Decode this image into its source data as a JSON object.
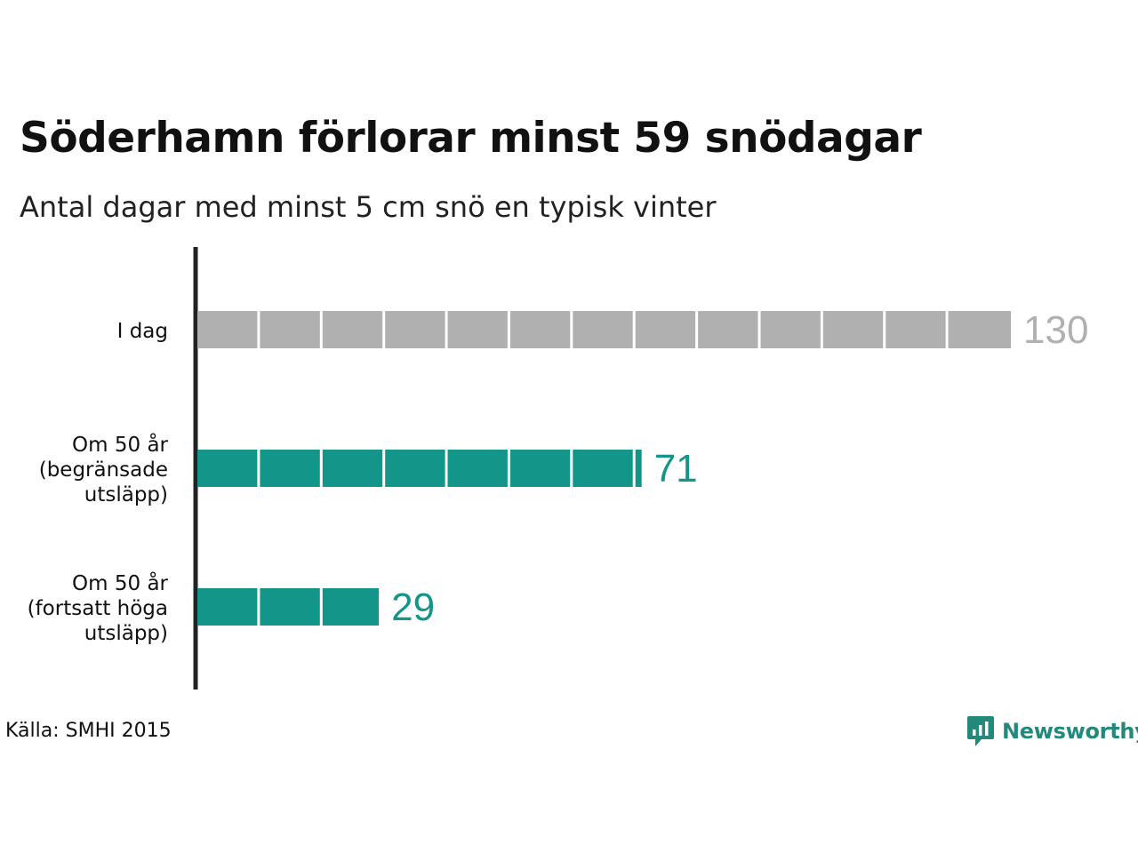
{
  "chart_data": {
    "type": "bar",
    "orientation": "horizontal",
    "title": "Söderhamn förlorar minst 59 snödagar",
    "subtitle": "Antal dagar med minst 5 cm snö en typisk vinter",
    "categories": [
      [
        "I dag"
      ],
      [
        "Om 50 år",
        "(begränsade",
        "utsläpp)"
      ],
      [
        "Om 50 år",
        "(fortsatt höga",
        "utsläpp)"
      ]
    ],
    "values": [
      130,
      71,
      29
    ],
    "value_labels": [
      "130",
      "71",
      "29"
    ],
    "bar_colors": [
      "#b0b0b0",
      "#14958a",
      "#14958a"
    ],
    "label_colors": [
      "#b0b0b0",
      "#14958a",
      "#14958a"
    ],
    "segment_step": 10,
    "xlim": [
      0,
      130
    ],
    "grid": false,
    "source": "Källa: SMHI 2015"
  },
  "brand": {
    "name": "Newsworthy",
    "icon": "newsworthy-logo-icon",
    "color": "#23897a"
  }
}
